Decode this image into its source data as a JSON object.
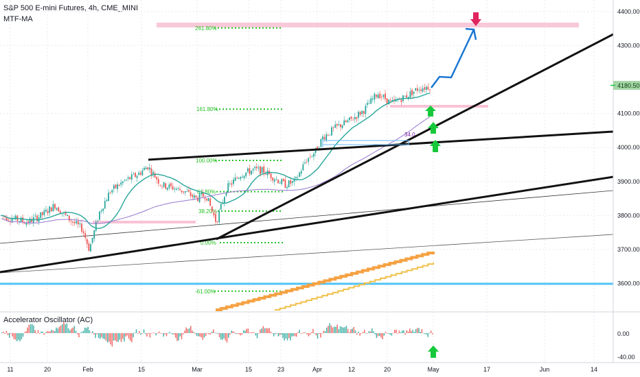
{
  "header": {
    "symbol_title": "S&P 500 E-mini Futures, 4h, CME_MINI",
    "indicator": "MTF-MA"
  },
  "oscillator": {
    "title": "Accelerator Oscillator (AC)",
    "ticks": [
      "0.00",
      "-40.00"
    ]
  },
  "price_axis": {
    "ticks": [
      "4400.00",
      "4300.00",
      "4180.50",
      "4100.00",
      "4000.00",
      "3900.00",
      "3800.00",
      "3700.00",
      "3600.00"
    ],
    "current_price": "4180.50"
  },
  "date_axis": {
    "ticks": [
      "11",
      "20",
      "Feb",
      "15",
      "Mar",
      "15",
      "23",
      "Apr",
      "12",
      "20",
      "May",
      "17",
      "Jun",
      "14"
    ]
  },
  "fib_levels": [
    "261.80%",
    "161.80%",
    "100.00%",
    "61.80%",
    "38.20%",
    "0.00%",
    "-61.00%"
  ],
  "annotation_label": "34.0",
  "colors": {
    "candle_up": "#26a69a",
    "candle_down": "#ef5350",
    "ma_green": "#26a69a",
    "ma_purple": "#9575cd",
    "fib": "#22c022",
    "zone_pink": "#f8bbd0",
    "projection": "#1976d2",
    "horizontal_cyan": "#4fc3f7",
    "orange": "#f5a142",
    "arrow_green": "#16c93a",
    "arrow_red": "#e0245e",
    "price_label_bg": "#a5d6a7"
  },
  "chart_data": {
    "type": "candlestick",
    "title": "S&P 500 E-mini Futures, 4h, CME_MINI",
    "yrange": [
      3550,
      4440
    ],
    "price_ticks": [
      4400,
      4300,
      4100,
      4000,
      3900,
      3800,
      3700,
      3600
    ],
    "current_price": 4180.5,
    "close_path": [
      [
        0,
        3800
      ],
      [
        40,
        3780
      ],
      [
        60,
        3800
      ],
      [
        80,
        3830
      ],
      [
        100,
        3790
      ],
      [
        120,
        3760
      ],
      [
        130,
        3700
      ],
      [
        145,
        3810
      ],
      [
        160,
        3870
      ],
      [
        180,
        3900
      ],
      [
        200,
        3920
      ],
      [
        215,
        3945
      ],
      [
        235,
        3890
      ],
      [
        255,
        3880
      ],
      [
        270,
        3870
      ],
      [
        285,
        3850
      ],
      [
        300,
        3860
      ],
      [
        315,
        3780
      ],
      [
        330,
        3880
      ],
      [
        350,
        3920
      ],
      [
        370,
        3935
      ],
      [
        385,
        3930
      ],
      [
        400,
        3910
      ],
      [
        415,
        3890
      ],
      [
        430,
        3900
      ],
      [
        445,
        3960
      ],
      [
        460,
        3990
      ],
      [
        470,
        4030
      ],
      [
        490,
        4060
      ],
      [
        510,
        4080
      ],
      [
        530,
        4110
      ],
      [
        550,
        4160
      ],
      [
        570,
        4130
      ],
      [
        590,
        4150
      ],
      [
        610,
        4175
      ],
      [
        628,
        4180
      ]
    ],
    "fibonacci": [
      {
        "label": "261.80%",
        "price": 4352
      },
      {
        "label": "161.80%",
        "price": 4113
      },
      {
        "label": "100.00%",
        "price": 3962
      },
      {
        "label": "61.80%",
        "price": 3870
      },
      {
        "label": "38.20%",
        "price": 3813
      },
      {
        "label": "0.00%",
        "price": 3720
      },
      {
        "label": "-61.00%",
        "price": 3577
      }
    ],
    "horizontal_line": 3590,
    "resistance_zone": [
      4350,
      4364
    ],
    "oscillator": {
      "name": "Accelerator Oscillator (AC)",
      "ticks": [
        0,
        -40
      ]
    }
  }
}
